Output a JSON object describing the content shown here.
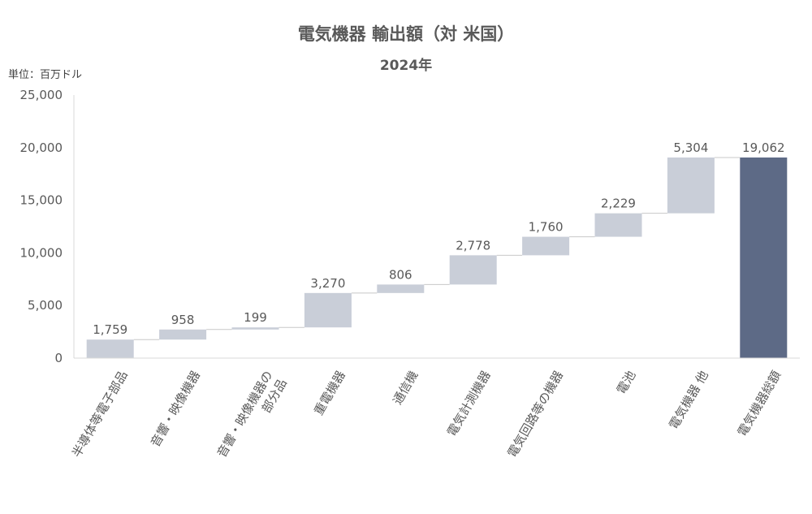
{
  "chart_data": {
    "type": "bar",
    "subtype": "waterfall",
    "title": "電気機器 輸出額（対 米国）",
    "subtitle": "2024年",
    "unit_label": "単位：百万ドル",
    "ylim": [
      0,
      25000
    ],
    "yticks": [
      "0",
      "5,000",
      "10,000",
      "15,000",
      "20,000",
      "25,000"
    ],
    "ytick_values": [
      0,
      5000,
      10000,
      15000,
      20000,
      25000
    ],
    "grid": false,
    "categories": [
      [
        "半導体等電子部品"
      ],
      [
        "音響・映像機器"
      ],
      [
        "音響・映像機器の",
        "部分品"
      ],
      [
        "重電機器"
      ],
      [
        "通信機"
      ],
      [
        "電気計測機器"
      ],
      [
        "電気回路等の機器"
      ],
      [
        "電池"
      ],
      [
        "電気機器 他"
      ],
      [
        "電気機器総額"
      ]
    ],
    "values": [
      1759,
      958,
      199,
      3270,
      806,
      2778,
      1760,
      2229,
      5304,
      19062
    ],
    "value_labels": [
      "1,759",
      "958",
      "199",
      "3,270",
      "806",
      "2,778",
      "1,760",
      "2,229",
      "5,304",
      "19,062"
    ],
    "is_total": [
      false,
      false,
      false,
      false,
      false,
      false,
      false,
      false,
      false,
      true
    ],
    "colors": {
      "increment": "#c9ced8",
      "total": "#5d6a86",
      "connector": "#c8c8c8",
      "axis": "#d9d9d9"
    }
  }
}
